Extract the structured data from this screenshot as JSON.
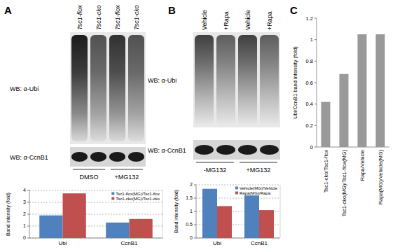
{
  "panels": [
    "A",
    "B",
    "C"
  ],
  "blots": [
    {
      "lanes": [
        "Tsc1-flox",
        "Tsc1-cko",
        "Tsc1-flox",
        "Tsc1-cko"
      ],
      "rows": [
        "WB: α-Ubi",
        "WB: α-CcnB1"
      ],
      "conditions": [
        "DMSO",
        "+MG132"
      ]
    },
    {
      "lanes": [
        "Vehicle",
        "+Rapa",
        "Vehicle",
        "+Rapa"
      ],
      "rows": [
        "WB: α-Ubi",
        "WB: α-CcnB1"
      ],
      "conditions": [
        "-MG132",
        "+MG132"
      ]
    }
  ],
  "chart_data": [
    {
      "type": "bar",
      "ylabel": "Band intensity (fold)",
      "categories": [
        "Ubi",
        "CcnB1"
      ],
      "series": [
        {
          "name": "Tsc1-flox(MG)/Tsc1-flox",
          "color": "#4f81bd",
          "values": [
            1.9,
            1.3
          ]
        },
        {
          "name": "Tsc1-cko(MG)/Tsc1-cko",
          "color": "#c0504d",
          "values": [
            3.75,
            1.6
          ]
        }
      ],
      "ylim": [
        0,
        4
      ],
      "yticks": [
        0,
        1,
        2,
        3,
        4
      ],
      "grid": true,
      "legend": "upper right"
    },
    {
      "type": "bar",
      "ylabel": "Band intensity (fold)",
      "categories": [
        "Ubi",
        "CcnB1"
      ],
      "series": [
        {
          "name": "Vehicle(MG)/Vehicle",
          "color": "#4f81bd",
          "values": [
            1.85,
            1.6
          ]
        },
        {
          "name": "Rapa(MG)/Rapa",
          "color": "#c0504d",
          "values": [
            1.2,
            1.05
          ]
        }
      ],
      "ylim": [
        0,
        2
      ],
      "yticks": [
        0,
        0.5,
        1,
        1.5,
        2
      ],
      "grid": true,
      "legend": "upper right"
    },
    {
      "type": "bar",
      "ylabel": "Ubi/CcnB1 band intensity (fold)",
      "categories": [
        "Tsc1-cko/Tsc1-flox",
        "Tsc1-cko(MG)/Tsc1-flox(MG)",
        "Rapa/Vehicle",
        "Rapa(MG)/Vehicle(MG)"
      ],
      "values": [
        0.42,
        0.68,
        1.05,
        1.05
      ],
      "color": "#999999",
      "ylim": [
        0,
        1.2
      ],
      "yticks": [
        0,
        0.2,
        0.4,
        0.6,
        0.8,
        1,
        1.2
      ],
      "grid": false
    }
  ]
}
